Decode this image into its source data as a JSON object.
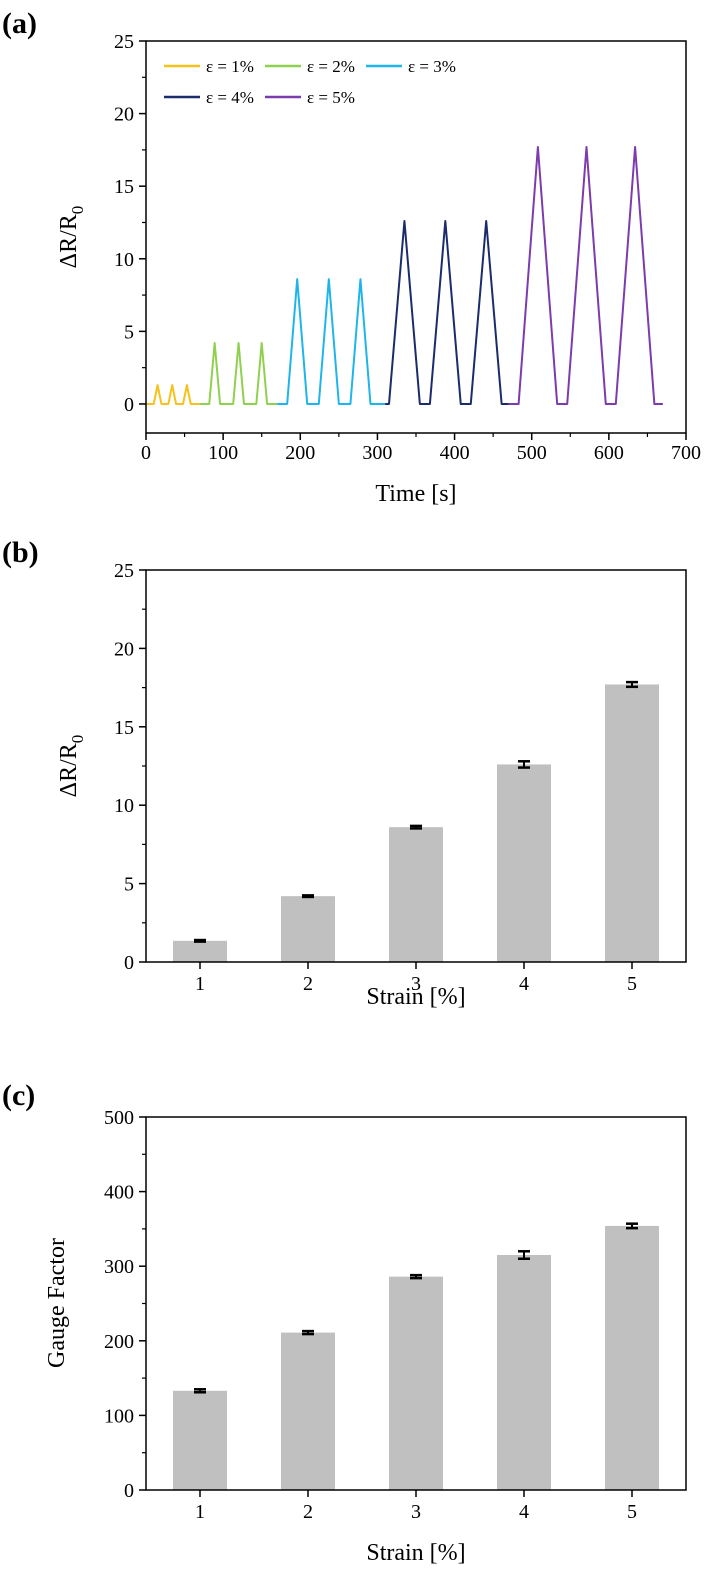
{
  "chart_data": [
    {
      "panel": "(a)",
      "type": "line",
      "xlabel": "Time [s]",
      "ylabel": "ΔR/R",
      "ylabel_sub": "0",
      "xlim": [
        0,
        700
      ],
      "ylim": [
        -2,
        25
      ],
      "xticks": [
        0,
        100,
        200,
        300,
        400,
        500,
        600,
        700
      ],
      "yticks": [
        0,
        5,
        10,
        15,
        20,
        25
      ],
      "grid": false,
      "legend": "top-left",
      "series": [
        {
          "name": "ε = 1%",
          "color": "#f5c21c",
          "x_range": [
            0,
            70
          ],
          "peak_times": [
            15,
            34,
            53
          ],
          "peak": 1.3,
          "half_width": 5
        },
        {
          "name": "ε = 2%",
          "color": "#8fd14f",
          "x_range": [
            70,
            170
          ],
          "peak_times": [
            89,
            120,
            150
          ],
          "peak": 4.2,
          "half_width": 7
        },
        {
          "name": "ε = 3%",
          "color": "#1fb5ea",
          "x_range": [
            170,
            310
          ],
          "peak_times": [
            196,
            237,
            278
          ],
          "peak": 8.6,
          "half_width": 13
        },
        {
          "name": "ε = 4%",
          "color": "#1b2c6b",
          "x_range": [
            310,
            470
          ],
          "peak_times": [
            335,
            388,
            441
          ],
          "peak": 12.6,
          "half_width": 20
        },
        {
          "name": "ε = 5%",
          "color": "#7d3cad",
          "x_range": [
            470,
            670
          ],
          "peak_times": [
            508,
            571,
            634
          ],
          "peak": 17.7,
          "half_width": 25
        }
      ]
    },
    {
      "panel": "(b)",
      "type": "bar",
      "xlabel": "Strain [%]",
      "ylabel": "ΔR/R",
      "ylabel_sub": "0",
      "categories": [
        "1",
        "2",
        "3",
        "4",
        "5"
      ],
      "values": [
        1.35,
        4.2,
        8.6,
        12.6,
        17.7
      ],
      "errors": [
        0.05,
        0.05,
        0.08,
        0.2,
        0.15
      ],
      "ylim": [
        0,
        25
      ],
      "yticks": [
        0,
        5,
        10,
        15,
        20,
        25
      ],
      "grid": false,
      "bar_color": "#c0c0c0"
    },
    {
      "panel": "(c)",
      "type": "bar",
      "xlabel": "Strain [%]",
      "ylabel": "Gauge Factor",
      "categories": [
        "1",
        "2",
        "3",
        "4",
        "5"
      ],
      "values": [
        133,
        211,
        286,
        315,
        354
      ],
      "errors": [
        2,
        2,
        2,
        5,
        3
      ],
      "ylim": [
        0,
        500
      ],
      "yticks": [
        0,
        100,
        200,
        300,
        400,
        500
      ],
      "grid": false,
      "bar_color": "#c0c0c0"
    }
  ]
}
